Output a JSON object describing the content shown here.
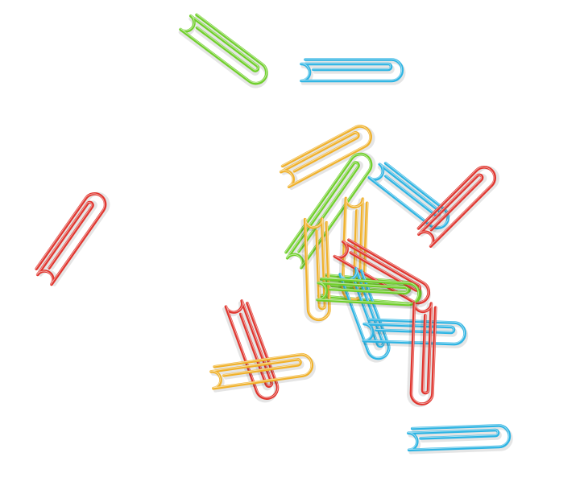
{
  "scene": {
    "subject": "paperclips",
    "background_color": "#ffffff"
  },
  "palette": {
    "red": "#e0352e",
    "green": "#6fcf2a",
    "blue": "#2db4e3",
    "yellow": "#f0b12a"
  },
  "paperclips": [
    {
      "color": "green"
    },
    {
      "color": "blue"
    },
    {
      "color": "yellow"
    },
    {
      "color": "green"
    },
    {
      "color": "blue"
    },
    {
      "color": "red"
    },
    {
      "color": "red"
    },
    {
      "color": "green"
    },
    {
      "color": "yellow"
    },
    {
      "color": "yellow"
    },
    {
      "color": "red"
    },
    {
      "color": "blue"
    },
    {
      "color": "green"
    },
    {
      "color": "blue"
    },
    {
      "color": "red"
    },
    {
      "color": "red"
    },
    {
      "color": "yellow"
    },
    {
      "color": "blue"
    }
  ]
}
